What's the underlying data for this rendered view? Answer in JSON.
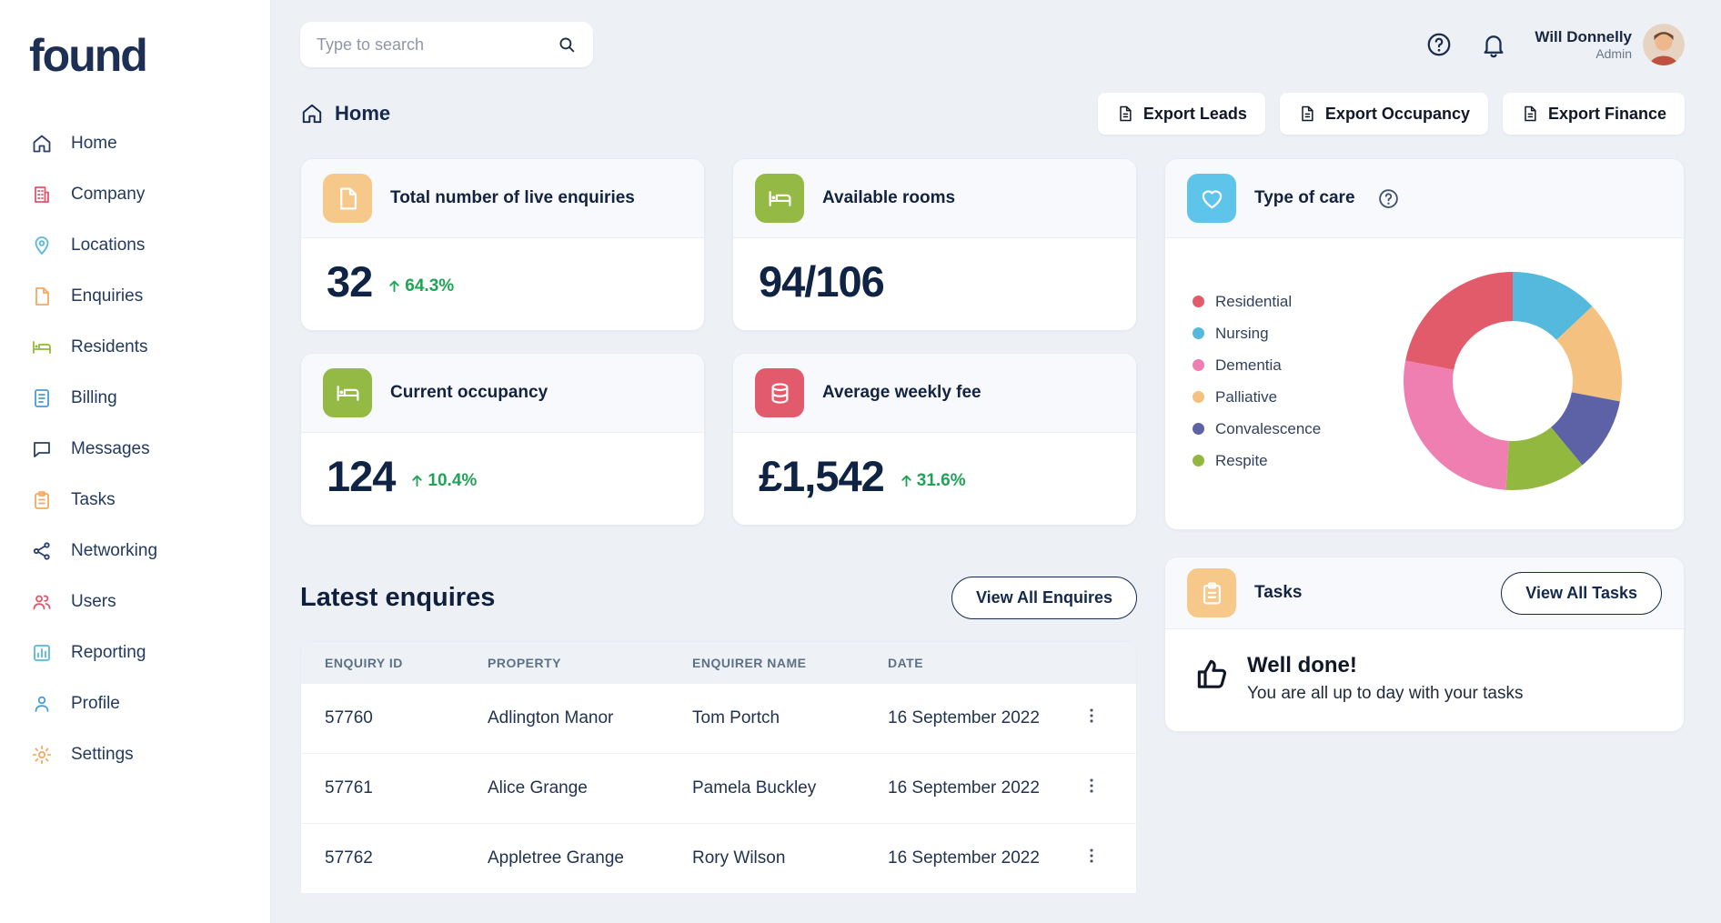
{
  "app": {
    "logo_text": "found"
  },
  "topbar": {
    "search": {
      "placeholder": "Type to search"
    },
    "user": {
      "name": "Will Donnelly",
      "role": "Admin"
    }
  },
  "sidebar": {
    "items": [
      {
        "label": "Home",
        "icon": "home",
        "color": "#2b3f6c"
      },
      {
        "label": "Company",
        "icon": "building",
        "color": "#e2566b"
      },
      {
        "label": "Locations",
        "icon": "pin",
        "color": "#55b8dc"
      },
      {
        "label": "Enquiries",
        "icon": "document",
        "color": "#f2a95f"
      },
      {
        "label": "Residents",
        "icon": "bed",
        "color": "#93b83f"
      },
      {
        "label": "Billing",
        "icon": "invoice",
        "color": "#4a9bd8"
      },
      {
        "label": "Messages",
        "icon": "chat",
        "color": "#2b3f6c"
      },
      {
        "label": "Tasks",
        "icon": "clipboard",
        "color": "#f2a95f"
      },
      {
        "label": "Networking",
        "icon": "network",
        "color": "#2b3f6c"
      },
      {
        "label": "Users",
        "icon": "users",
        "color": "#e2566b"
      },
      {
        "label": "Reporting",
        "icon": "chart",
        "color": "#55b8dc"
      },
      {
        "label": "Profile",
        "icon": "user",
        "color": "#4a9bd8"
      },
      {
        "label": "Settings",
        "icon": "gear",
        "color": "#f2a95f"
      }
    ]
  },
  "breadcrumb": {
    "label": "Home"
  },
  "export_buttons": [
    {
      "label": "Export Leads"
    },
    {
      "label": "Export Occupancy"
    },
    {
      "label": "Export Finance"
    }
  ],
  "stats": [
    {
      "title": "Total number of live enquiries",
      "value": "32",
      "change": "64.3%",
      "icon": "document",
      "tile_color": "#f6c98b"
    },
    {
      "title": "Available rooms",
      "value": "94/106",
      "icon": "bed",
      "tile_color": "#94ba45"
    },
    {
      "title": "Current occupancy",
      "value": "124",
      "change": "10.4%",
      "icon": "bed",
      "tile_color": "#94ba45"
    },
    {
      "title": "Average weekly fee",
      "value": "£1,542",
      "change": "31.6%",
      "icon": "coins",
      "tile_color": "#e25b6d"
    }
  ],
  "type_of_care": {
    "title": "Type of care",
    "tile_color": "#5ec4ea",
    "chart_data": {
      "type": "donut",
      "series": [
        {
          "name": "Residential",
          "value": 22,
          "color": "#e15b6b"
        },
        {
          "name": "Nursing",
          "value": 13,
          "color": "#54b9dc"
        },
        {
          "name": "Dementia",
          "value": 27,
          "color": "#f07fb1"
        },
        {
          "name": "Palliative",
          "value": 15,
          "color": "#f4c181"
        },
        {
          "name": "Convalescence",
          "value": 11,
          "color": "#5d62a6"
        },
        {
          "name": "Respite",
          "value": 12,
          "color": "#93b83f"
        }
      ],
      "draw_order": [
        1,
        3,
        4,
        5,
        2,
        0
      ],
      "legend_position": "left",
      "values_unit": "percent_estimate"
    }
  },
  "latest_enquiries": {
    "title": "Latest enquires",
    "view_all_label": "View All Enquires",
    "columns": [
      "ENQUIRY ID",
      "PROPERTY",
      "ENQUIRER NAME",
      "DATE"
    ],
    "rows": [
      {
        "id": "57760",
        "property": "Adlington Manor",
        "enquirer": "Tom Portch",
        "date": "16 September 2022"
      },
      {
        "id": "57761",
        "property": "Alice Grange",
        "enquirer": "Pamela Buckley",
        "date": "16 September 2022"
      },
      {
        "id": "57762",
        "property": "Appletree Grange",
        "enquirer": "Rory Wilson",
        "date": "16 September 2022"
      }
    ]
  },
  "tasks_card": {
    "title": "Tasks",
    "tile_color": "#f6c98b",
    "view_all_label": "View All Tasks",
    "message_title": "Well done!",
    "message_body": "You are all up to day with your tasks"
  },
  "colors": {
    "positive": "#1fa356",
    "navy": "#1b2c4f",
    "background": "#edf1f6"
  }
}
